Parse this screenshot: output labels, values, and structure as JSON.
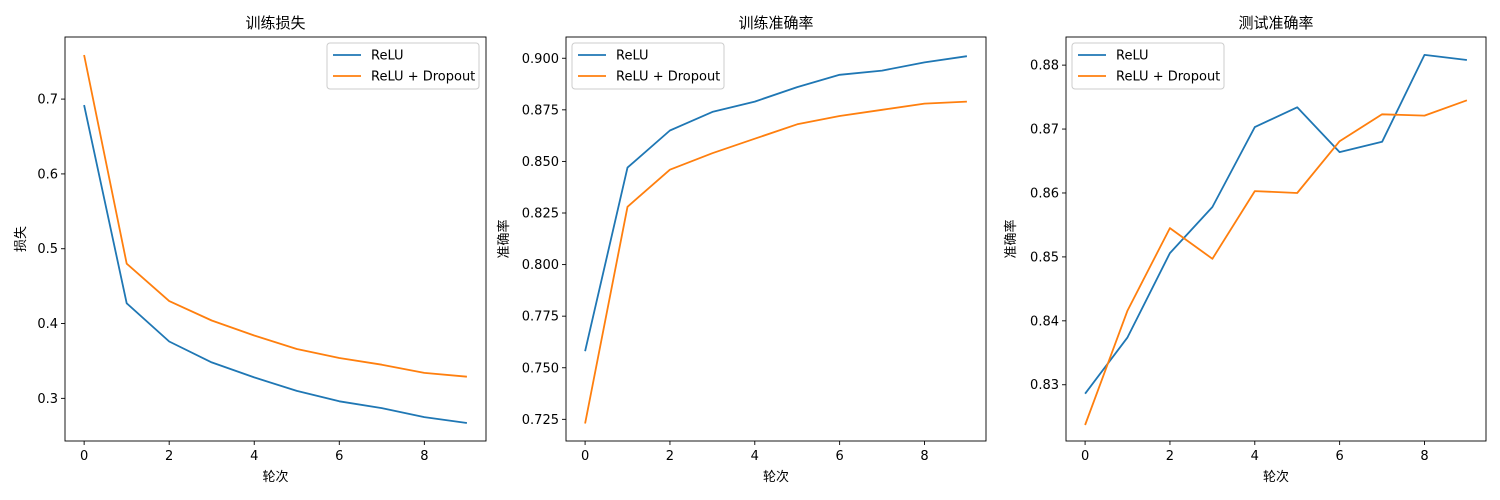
{
  "chart_data": [
    {
      "type": "line",
      "title": "训练损失",
      "xlabel": "轮次",
      "ylabel": "损失",
      "x": [
        0,
        1,
        2,
        3,
        4,
        5,
        6,
        7,
        8,
        9
      ],
      "xlim": [
        -0.45,
        9.45
      ],
      "ylim": [
        0.243,
        0.783
      ],
      "xticks": [
        0,
        2,
        4,
        6,
        8
      ],
      "yticks": [
        0.3,
        0.4,
        0.5,
        0.6,
        0.7
      ],
      "ytick_labels": [
        "0.3",
        "0.4",
        "0.5",
        "0.6",
        "0.7"
      ],
      "legend_position": "top-right",
      "series": [
        {
          "name": "ReLU",
          "color": "#1f77b4",
          "values": [
            0.692,
            0.427,
            0.376,
            0.348,
            0.328,
            0.31,
            0.296,
            0.287,
            0.275,
            0.267
          ]
        },
        {
          "name": "ReLU + Dropout",
          "color": "#ff7f0e",
          "values": [
            0.759,
            0.48,
            0.43,
            0.404,
            0.384,
            0.366,
            0.354,
            0.345,
            0.334,
            0.329
          ]
        }
      ]
    },
    {
      "type": "line",
      "title": "训练准确率",
      "xlabel": "轮次",
      "ylabel": "准确率",
      "x": [
        0,
        1,
        2,
        3,
        4,
        5,
        6,
        7,
        8,
        9
      ],
      "xlim": [
        -0.45,
        9.45
      ],
      "ylim": [
        0.7145,
        0.9103
      ],
      "xticks": [
        0,
        2,
        4,
        6,
        8
      ],
      "yticks": [
        0.725,
        0.75,
        0.775,
        0.8,
        0.825,
        0.85,
        0.875,
        0.9
      ],
      "ytick_labels": [
        "0.725",
        "0.750",
        "0.775",
        "0.800",
        "0.825",
        "0.850",
        "0.875",
        "0.900"
      ],
      "legend_position": "top-left",
      "series": [
        {
          "name": "ReLU",
          "color": "#1f77b4",
          "values": [
            0.758,
            0.847,
            0.865,
            0.874,
            0.879,
            0.886,
            0.892,
            0.894,
            0.898,
            0.901
          ]
        },
        {
          "name": "ReLU + Dropout",
          "color": "#ff7f0e",
          "values": [
            0.723,
            0.828,
            0.846,
            0.854,
            0.861,
            0.868,
            0.872,
            0.875,
            0.878,
            0.879
          ]
        }
      ]
    },
    {
      "type": "line",
      "title": "测试准确率",
      "xlabel": "轮次",
      "ylabel": "准确率",
      "x": [
        0,
        1,
        2,
        3,
        4,
        5,
        6,
        7,
        8,
        9
      ],
      "xlim": [
        -0.45,
        9.45
      ],
      "ylim": [
        0.8212,
        0.8844
      ],
      "xticks": [
        0,
        2,
        4,
        6,
        8
      ],
      "yticks": [
        0.83,
        0.84,
        0.85,
        0.86,
        0.87,
        0.88
      ],
      "ytick_labels": [
        "0.83",
        "0.84",
        "0.85",
        "0.86",
        "0.87",
        "0.88"
      ],
      "legend_position": "top-left",
      "series": [
        {
          "name": "ReLU",
          "color": "#1f77b4",
          "values": [
            0.8286,
            0.8374,
            0.8506,
            0.8578,
            0.8703,
            0.8734,
            0.8664,
            0.868,
            0.8816,
            0.8808
          ]
        },
        {
          "name": "ReLU + Dropout",
          "color": "#ff7f0e",
          "values": [
            0.8237,
            0.8416,
            0.8545,
            0.8497,
            0.8603,
            0.86,
            0.8681,
            0.8723,
            0.8721,
            0.8745
          ]
        }
      ]
    }
  ]
}
